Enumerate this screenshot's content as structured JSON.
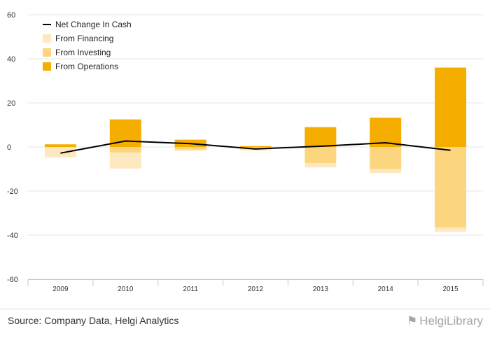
{
  "chart_data": {
    "type": "bar",
    "stacked": true,
    "categories": [
      "2009",
      "2010",
      "2011",
      "2012",
      "2013",
      "2014",
      "2015"
    ],
    "series": [
      {
        "name": "From Operations",
        "kind": "bar",
        "color": "#f5ae00",
        "values": [
          1.2,
          12.5,
          3.3,
          0.4,
          9.0,
          13.3,
          36.0
        ]
      },
      {
        "name": "From Investing",
        "kind": "bar",
        "color": "#fcd57f",
        "values": [
          -0.2,
          -2.6,
          -1.1,
          -0.9,
          -7.3,
          -10.0,
          -36.5
        ]
      },
      {
        "name": "From Financing",
        "kind": "bar",
        "color": "#fde9c0",
        "values": [
          -4.5,
          -7.2,
          -0.7,
          -0.8,
          -2.0,
          -1.8,
          -2.0
        ]
      },
      {
        "name": "Net Change In Cash",
        "kind": "line",
        "color": "#000000",
        "values": [
          -2.8,
          2.7,
          1.5,
          -0.9,
          0.3,
          1.9,
          -1.5
        ]
      }
    ],
    "legend_order": [
      "Net Change In Cash",
      "From Financing",
      "From Investing",
      "From Operations"
    ],
    "yticks": [
      60,
      40,
      20,
      0,
      -20,
      -40,
      -60
    ],
    "ylim": [
      -60,
      60
    ],
    "grid": true,
    "legend_position": "top-left"
  },
  "footer": {
    "source": "Source: Company Data, Helgi Analytics",
    "brand": "HelgiLibrary"
  }
}
